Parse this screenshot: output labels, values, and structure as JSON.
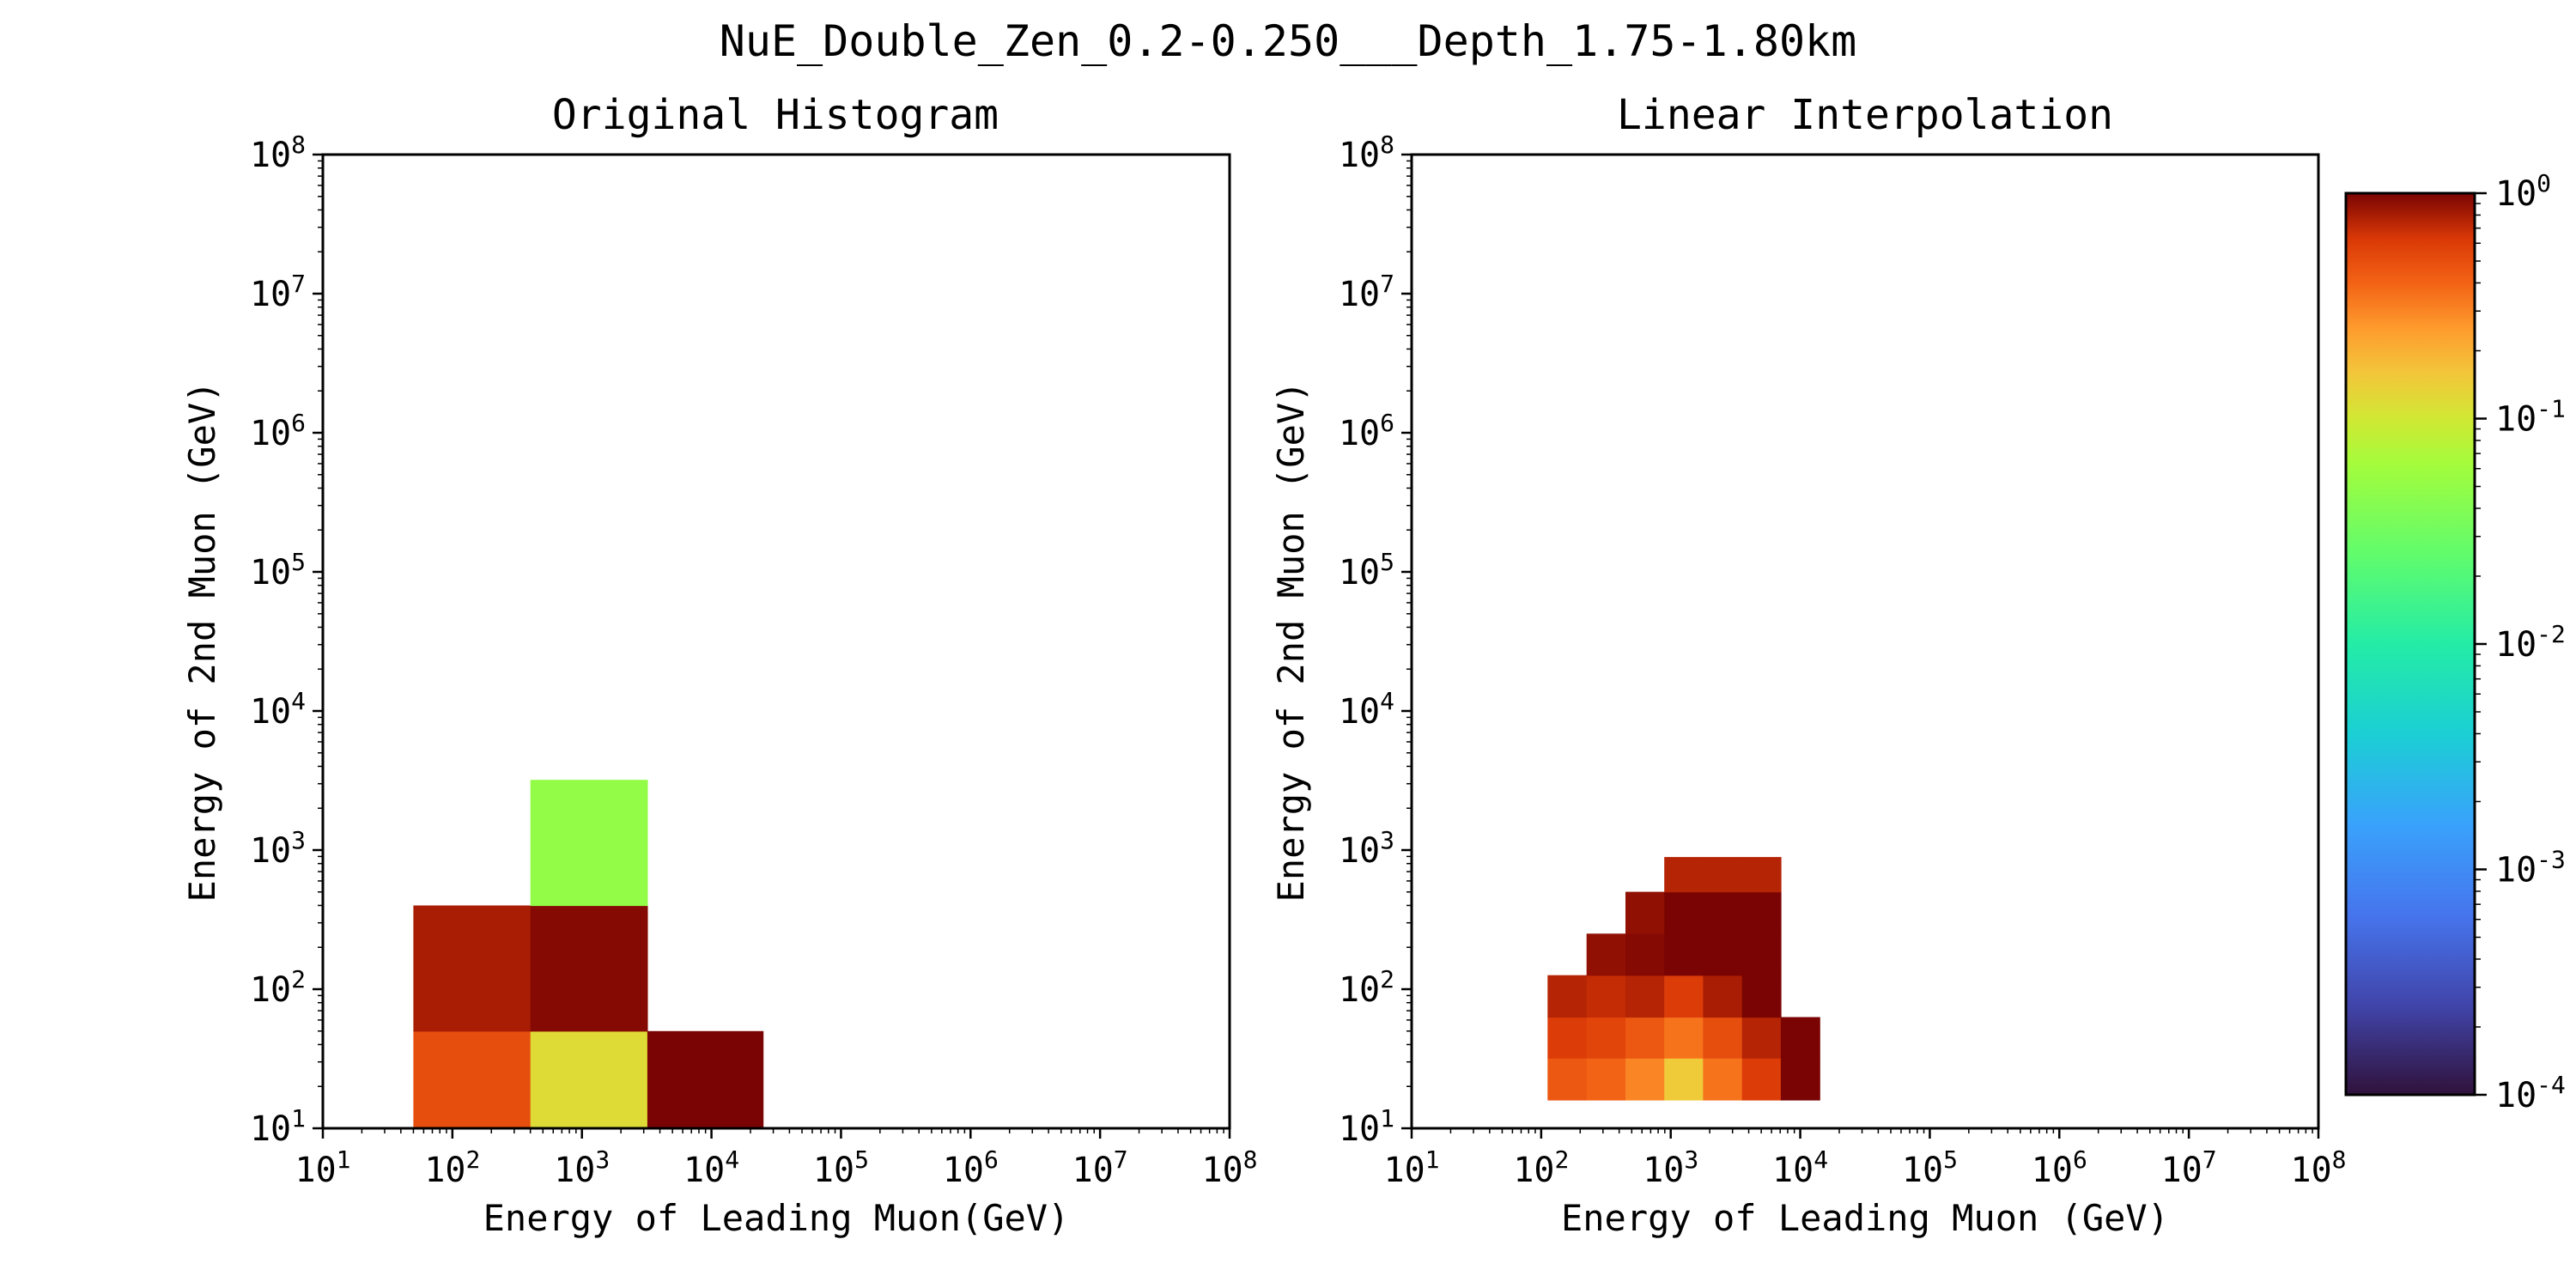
{
  "chart_data": [
    {
      "type": "heatmap",
      "title": "Original Histogram",
      "xlabel": "Energy of Leading Muon(GeV)",
      "ylabel": "Energy of 2nd Muon (GeV)",
      "xscale": "log",
      "yscale": "log",
      "xlim": [
        10,
        100000000
      ],
      "ylim": [
        10,
        100000000
      ],
      "xticks": [
        "10^1",
        "10^2",
        "10^3",
        "10^4",
        "10^5",
        "10^6",
        "10^7",
        "10^8"
      ],
      "yticks": [
        "10^1",
        "10^2",
        "10^3",
        "10^4",
        "10^5",
        "10^6",
        "10^7",
        "10^8"
      ],
      "cells": [
        {
          "x": [
            50,
            400
          ],
          "y": [
            10,
            50
          ],
          "value": 0.5
        },
        {
          "x": [
            400,
            3200
          ],
          "y": [
            10,
            50
          ],
          "value": 0.12
        },
        {
          "x": [
            3200,
            25000
          ],
          "y": [
            10,
            50
          ],
          "value": 1.0
        },
        {
          "x": [
            50,
            400
          ],
          "y": [
            50,
            400
          ],
          "value": 0.8
        },
        {
          "x": [
            400,
            3200
          ],
          "y": [
            50,
            400
          ],
          "value": 0.95
        },
        {
          "x": [
            400,
            3200
          ],
          "y": [
            400,
            3200
          ],
          "value": 0.05
        }
      ]
    },
    {
      "type": "heatmap",
      "title": "Linear Interpolation",
      "xlabel": "Energy of Leading Muon (GeV)",
      "ylabel": "Energy of 2nd Muon (GeV)",
      "xscale": "log",
      "yscale": "log",
      "xlim": [
        10,
        100000000
      ],
      "ylim": [
        10,
        100000000
      ],
      "xticks": [
        "10^1",
        "10^2",
        "10^3",
        "10^4",
        "10^5",
        "10^6",
        "10^7",
        "10^8"
      ],
      "yticks": [
        "10^1",
        "10^2",
        "10^3",
        "10^4",
        "10^5",
        "10^6",
        "10^7",
        "10^8"
      ],
      "x_edges": [
        112,
        224,
        447,
        891,
        1778,
        3548,
        7079,
        14125
      ],
      "y_edges": [
        16,
        32,
        63,
        126,
        251,
        501,
        891
      ],
      "grid_values": [
        [
          0.45,
          0.4,
          0.3,
          0.15,
          0.35,
          0.6,
          1.0
        ],
        [
          0.6,
          0.55,
          0.45,
          0.35,
          0.5,
          0.75,
          1.0
        ],
        [
          0.75,
          0.7,
          0.75,
          0.6,
          0.8,
          1.0,
          null
        ],
        [
          null,
          0.9,
          0.95,
          1.0,
          1.0,
          1.0,
          null
        ],
        [
          null,
          null,
          0.9,
          1.0,
          1.0,
          1.0,
          null
        ],
        [
          null,
          null,
          null,
          0.75,
          0.75,
          0.75,
          null
        ]
      ]
    }
  ],
  "figure": {
    "suptitle": "NuE_Double_Zen_0.2-0.250___Depth_1.75-1.80km"
  },
  "colorbar": {
    "scale": "log",
    "range": [
      0.0001,
      1
    ],
    "ticks": [
      "10^0",
      "10^-1",
      "10^-2",
      "10^-3",
      "10^-4"
    ],
    "colormap": "turbo"
  }
}
